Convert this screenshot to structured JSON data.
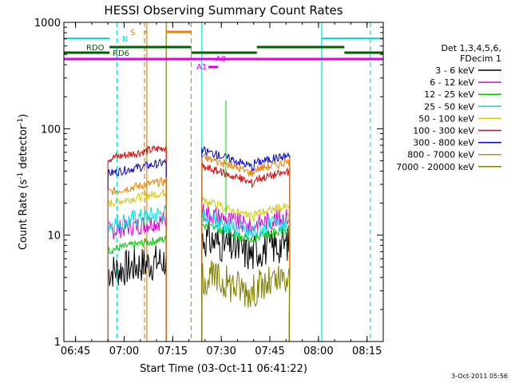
{
  "chart_data": {
    "type": "line",
    "title": "HESSI Observing Summary Count Rates",
    "xlabel": "Start Time (03-Oct-11 06:41:22)",
    "ylabel": "Count Rate (s",
    "ylabel_sup1": "-1",
    "ylabel_mid": " detector",
    "ylabel_sup2": "-1",
    "ylabel_end": ")",
    "yscale": "log",
    "ylim": [
      1,
      1000
    ],
    "xlim": [
      "06:41",
      "08:20"
    ],
    "x_ticks": [
      "06:45",
      "07:00",
      "07:15",
      "07:30",
      "07:45",
      "08:00",
      "08:15"
    ],
    "y_ticks": [
      "1",
      "10",
      "100",
      "1000"
    ],
    "footer_date": "3-Oct-2011 05:56",
    "legend": {
      "header1": "Det 1,3,4,5,6,",
      "header2": "FDecim 1",
      "entries": [
        {
          "label": "3 - 6 keV",
          "color": "#000000"
        },
        {
          "label": "6 - 12 keV",
          "color": "#e000e0"
        },
        {
          "label": "12 - 25 keV",
          "color": "#00cc00"
        },
        {
          "label": "25 - 50 keV",
          "color": "#00e0e0"
        },
        {
          "label": "50 - 100 keV",
          "color": "#d8c800"
        },
        {
          "label": "100 - 300 keV",
          "color": "#e00000"
        },
        {
          "label": "300 - 800 keV",
          "color": "#0000e0"
        },
        {
          "label": "800 - 7000 keV",
          "color": "#f08000"
        },
        {
          "label": "7000 - 20000 keV",
          "color": "#808000"
        }
      ]
    },
    "flag_labels": {
      "N": "N",
      "S": "S",
      "RDO": "RDO",
      "RD6": "RD6",
      "A0": "A0",
      "A1": "A1"
    },
    "orbit1": {
      "start": "06:55",
      "end": "07:13",
      "levels": [
        5,
        12,
        8,
        14,
        22,
        58,
        42,
        28,
        0
      ]
    },
    "orbit2": {
      "start": "07:24",
      "end": "07:51",
      "levels": [
        9,
        16,
        12,
        14,
        20,
        42,
        60,
        52,
        4
      ]
    }
  }
}
